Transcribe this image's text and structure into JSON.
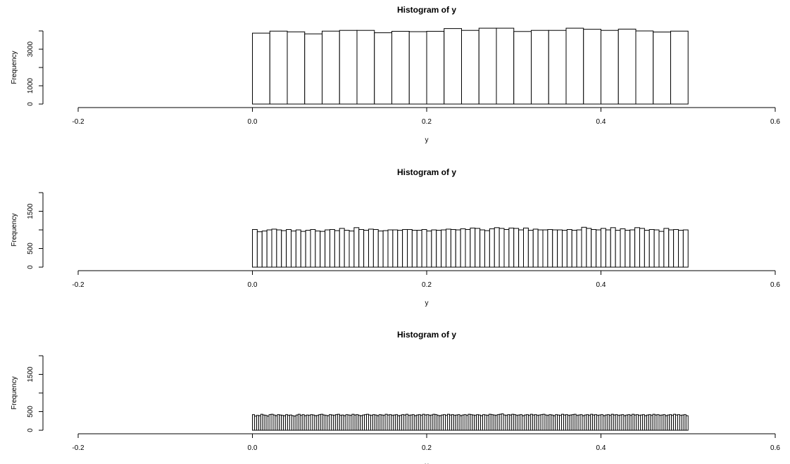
{
  "chart_data": [
    {
      "type": "bar",
      "title": "Histogram of y",
      "xlabel": "y",
      "ylabel": "Frequency",
      "xlim": [
        -0.2,
        0.6
      ],
      "ylim": [
        0,
        4000
      ],
      "xticks": [
        -0.2,
        0.0,
        0.2,
        0.4,
        0.6
      ],
      "xtick_labels": [
        "-0.2",
        "0.0",
        "0.2",
        "0.4",
        "0.6"
      ],
      "yticks": [
        0,
        1000,
        2000,
        3000,
        4000
      ],
      "ytick_labels": [
        "0",
        "1000",
        "",
        "3000",
        ""
      ],
      "bin_range": [
        0.0,
        0.5
      ],
      "values": [
        3880,
        3990,
        3950,
        3840,
        3990,
        4030,
        4030,
        3900,
        3980,
        3960,
        3980,
        4130,
        4030,
        4150,
        4150,
        3970,
        4030,
        4030,
        4150,
        4090,
        4030,
        4100,
        4000,
        3940,
        3990
      ]
    },
    {
      "type": "bar",
      "title": "Histogram of y",
      "xlabel": "y",
      "ylabel": "Frequency",
      "xlim": [
        -0.2,
        0.6
      ],
      "ylim": [
        0,
        2000
      ],
      "xticks": [
        -0.2,
        0.0,
        0.2,
        0.4,
        0.6
      ],
      "xtick_labels": [
        "-0.2",
        "0.0",
        "0.2",
        "0.4",
        "0.6"
      ],
      "yticks": [
        0,
        500,
        1000,
        1500,
        2000
      ],
      "ytick_labels": [
        "0",
        "500",
        "",
        "1500",
        ""
      ],
      "bin_range": [
        0.0,
        0.5
      ],
      "values": [
        1010,
        950,
        970,
        1000,
        1020,
        1000,
        980,
        1010,
        970,
        1000,
        960,
        990,
        1010,
        970,
        960,
        1000,
        1010,
        980,
        1040,
        990,
        970,
        1060,
        1010,
        990,
        1020,
        1010,
        970,
        980,
        1000,
        1000,
        990,
        1010,
        1010,
        990,
        990,
        1010,
        970,
        1000,
        990,
        1000,
        1020,
        1010,
        1000,
        1030,
        1010,
        1050,
        1040,
        1000,
        980,
        1030,
        1060,
        1040,
        1010,
        1050,
        1040,
        1000,
        1050,
        990,
        1020,
        1000,
        1000,
        1010,
        1000,
        1000,
        990,
        1010,
        990,
        1000,
        1070,
        1040,
        1010,
        1000,
        1040,
        1000,
        1060,
        990,
        1030,
        990,
        1000,
        1060,
        1040,
        990,
        1010,
        1000,
        960,
        1040,
        1000,
        1010,
        990,
        1000
      ]
    },
    {
      "type": "bar",
      "title": "Histogram of y",
      "xlabel": "y",
      "ylabel": "Frequency",
      "xlim": [
        -0.2,
        0.6
      ],
      "ylim": [
        0,
        2000
      ],
      "xticks": [
        -0.2,
        0.0,
        0.2,
        0.4,
        0.6
      ],
      "xtick_labels": [
        "-0.2",
        "0.0",
        "0.2",
        "0.4",
        "0.6"
      ],
      "yticks": [
        0,
        500,
        1000,
        1500,
        2000
      ],
      "ytick_labels": [
        "0",
        "500",
        "",
        "1500",
        ""
      ],
      "bin_range": [
        0.0,
        0.5
      ],
      "values": [
        420,
        380,
        400,
        390,
        430,
        410,
        400,
        380,
        420,
        430,
        410,
        390,
        420,
        410,
        400,
        390,
        420,
        400,
        410,
        390,
        380,
        410,
        430,
        400,
        420,
        390,
        410,
        400,
        420,
        410,
        390,
        400,
        420,
        430,
        410,
        400,
        390,
        420,
        410,
        400,
        420,
        430,
        400,
        410,
        390,
        420,
        410,
        400,
        430,
        410,
        420,
        400,
        390,
        410,
        420,
        430,
        410,
        400,
        420,
        410,
        390,
        420,
        410,
        400,
        430,
        410,
        420,
        400,
        410,
        420,
        390,
        400,
        420,
        410,
        430,
        400,
        410,
        420,
        390,
        410,
        420,
        400,
        430,
        410,
        420,
        400,
        410,
        430,
        420,
        400,
        390,
        410,
        420,
        400,
        430,
        410,
        420,
        400,
        410,
        420,
        390,
        410,
        420,
        400,
        430,
        420,
        410,
        400,
        420,
        410,
        390,
        420,
        410,
        400,
        430,
        420,
        410,
        400,
        420,
        430,
        440,
        410,
        400,
        420,
        410,
        430,
        420,
        400,
        410,
        420,
        390,
        410,
        420,
        400,
        430,
        410,
        420,
        400,
        410,
        420,
        430,
        410,
        400,
        420,
        410,
        390,
        420,
        410,
        400,
        430,
        410,
        420,
        400,
        410,
        420,
        430,
        400,
        410,
        420,
        390,
        410,
        420,
        400,
        430,
        410,
        420,
        400,
        410,
        420,
        390,
        410,
        420,
        400,
        430,
        410,
        420,
        400,
        410,
        420,
        390,
        410,
        420,
        400,
        430,
        410,
        420,
        400,
        410,
        420,
        390,
        410,
        420,
        400,
        430,
        410,
        420,
        400,
        410,
        420,
        390,
        410,
        420,
        400,
        430,
        410,
        420,
        400,
        410,
        420,
        390
      ]
    }
  ]
}
